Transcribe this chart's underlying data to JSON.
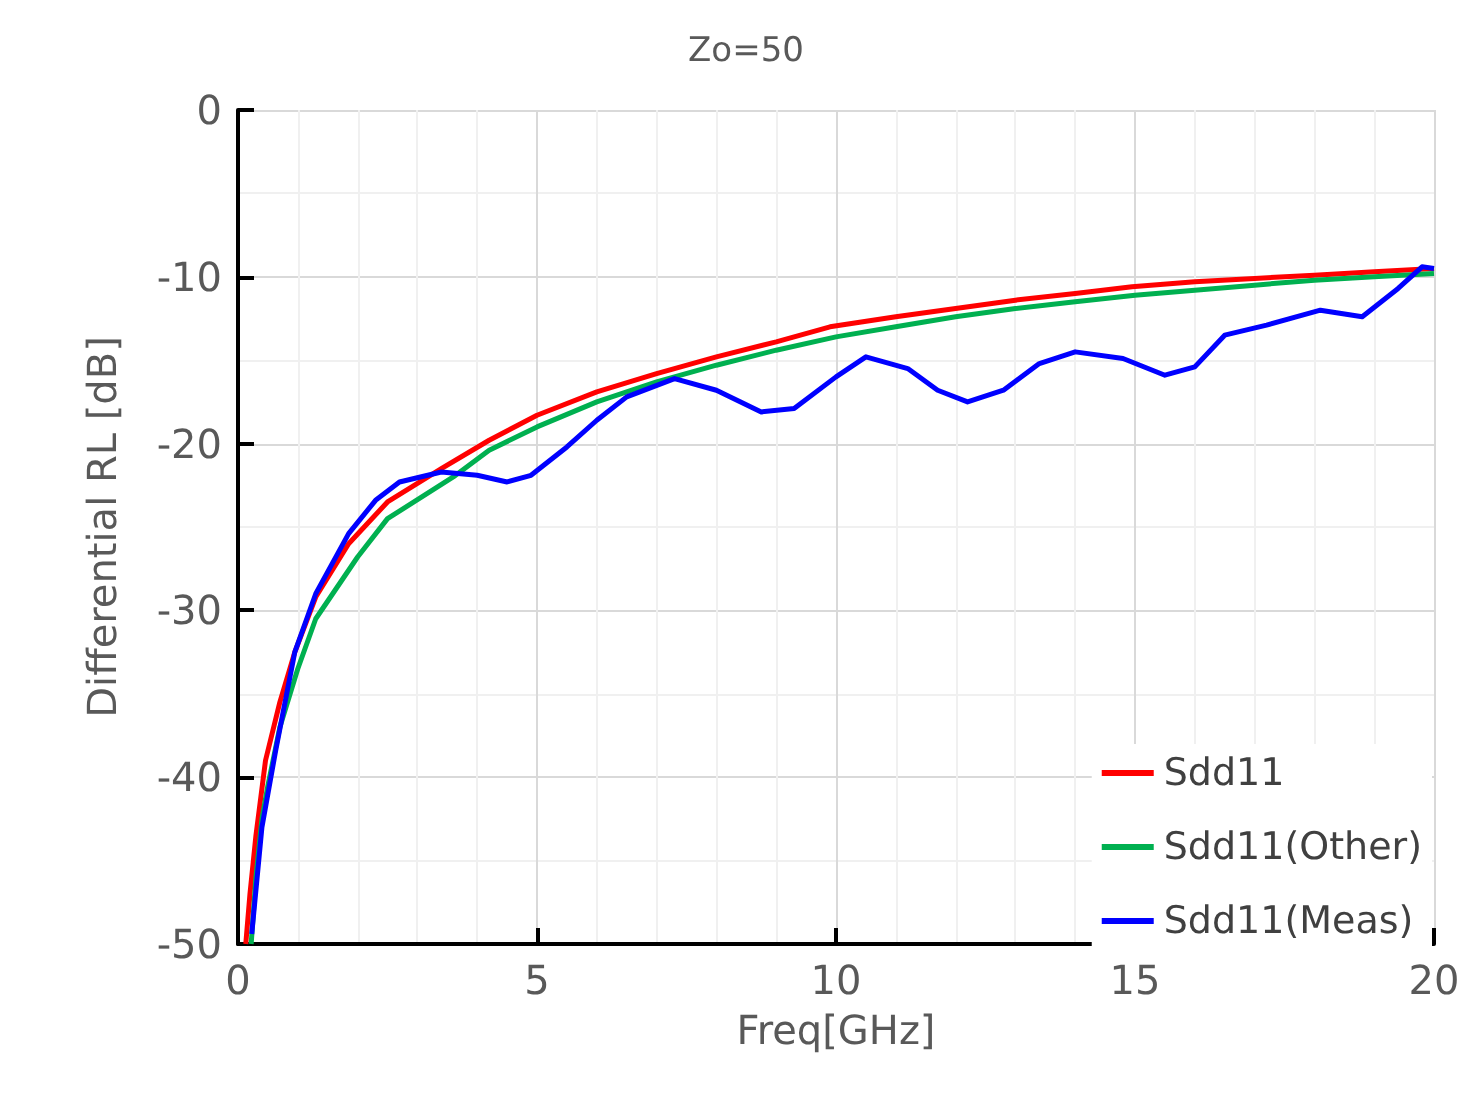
{
  "chart_data": {
    "type": "line",
    "title": "Zo=50",
    "xlabel": "Freq[GHz]",
    "ylabel": "Differential RL [dB]",
    "xlim": [
      0,
      20
    ],
    "xticks": [
      0,
      5,
      10,
      15,
      20
    ],
    "ylim": [
      -50,
      0
    ],
    "yticks": [
      -50,
      -40,
      -30,
      -20,
      -10,
      0
    ],
    "grid": true,
    "legend": "bottom right",
    "marker": "none",
    "line_style": "solid",
    "series": [
      {
        "name": "Sdd11",
        "color": "#ff0000",
        "x": [
          0.13,
          0.2,
          0.3,
          0.46,
          0.7,
          0.95,
          1.3,
          1.85,
          2.5,
          3.4,
          4.2,
          5,
          6,
          7,
          8,
          9,
          9.9,
          11,
          12,
          13,
          14,
          14.95,
          16,
          17,
          18,
          19,
          20
        ],
        "values": [
          -50,
          -47,
          -43.5,
          -39,
          -35.5,
          -32.5,
          -29.2,
          -26,
          -23.5,
          -21.5,
          -19.8,
          -18.3,
          -16.9,
          -15.8,
          -14.8,
          -13.9,
          -13,
          -12.4,
          -11.9,
          -11.4,
          -11,
          -10.6,
          -10.3,
          -10.1,
          -9.9,
          -9.7,
          -9.5
        ]
      },
      {
        "name": "Sdd11(Other)",
        "color": "#00b050",
        "x": [
          0.22,
          0.3,
          0.4,
          0.5,
          0.7,
          1,
          1.3,
          2,
          2.5,
          3.6,
          4.2,
          5,
          6,
          7,
          8,
          9,
          10,
          11,
          12,
          13,
          14,
          15,
          16,
          17,
          18,
          19,
          20
        ],
        "values": [
          -50,
          -46,
          -42.5,
          -40.5,
          -37,
          -33.5,
          -30.5,
          -26.8,
          -24.5,
          -22,
          -20.4,
          -19,
          -17.5,
          -16.3,
          -15.3,
          -14.4,
          -13.6,
          -13,
          -12.4,
          -11.9,
          -11.5,
          -11.1,
          -10.8,
          -10.5,
          -10.2,
          -10,
          -9.8
        ]
      },
      {
        "name": "Sdd11(Meas)",
        "color": "#0000ff",
        "x": [
          0.23,
          0.4,
          0.63,
          0.95,
          1.3,
          1.85,
          2.3,
          2.7,
          3.4,
          4,
          4.5,
          4.9,
          5.5,
          6,
          6.5,
          7.3,
          8,
          8.75,
          9.3,
          10,
          10.5,
          11.2,
          11.7,
          12.2,
          12.8,
          13.4,
          14,
          14.8,
          15.5,
          16,
          16.5,
          17.2,
          18.1,
          18.8,
          19.4,
          19.8,
          20
        ],
        "values": [
          -49.4,
          -43,
          -38.4,
          -32.5,
          -29,
          -25.4,
          -23.4,
          -22.3,
          -21.7,
          -21.9,
          -22.3,
          -21.9,
          -20.2,
          -18.6,
          -17.2,
          -16.1,
          -16.8,
          -18.1,
          -17.9,
          -16,
          -14.8,
          -15.5,
          -16.8,
          -17.5,
          -16.8,
          -15.2,
          -14.5,
          -14.9,
          -15.9,
          -15.4,
          -13.5,
          -12.9,
          -12,
          -12.4,
          -10.7,
          -9.4,
          -9.5
        ]
      }
    ]
  }
}
